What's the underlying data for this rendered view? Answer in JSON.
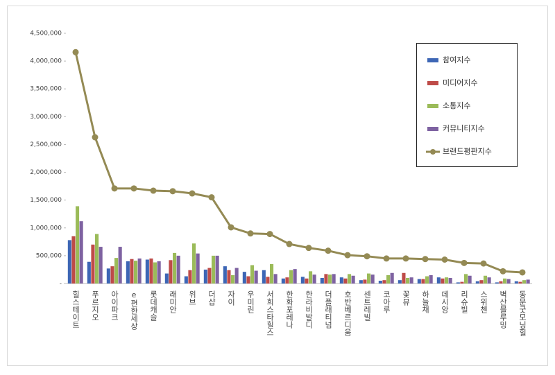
{
  "chart_data": {
    "type": "bar",
    "categories": [
      "힐스테이트",
      "푸르지오",
      "아이파크",
      "e편한세상",
      "롯데캐슬",
      "래미안",
      "위브",
      "더샵",
      "자이",
      "우미린",
      "서희스타힐스",
      "한화포레나",
      "한라비발디",
      "더플래티넘",
      "호반베르디움",
      "센트레빌",
      "코아루",
      "꽃뷰",
      "하늘채",
      "데시앙",
      "리슈빌",
      "스위첸",
      "벽산블루밍",
      "동문굿모닝힐"
    ],
    "series": [
      {
        "name": "참여지수",
        "color": "#3d66b5",
        "values": [
          780000,
          390000,
          270000,
          400000,
          430000,
          180000,
          130000,
          250000,
          310000,
          210000,
          240000,
          90000,
          120000,
          100000,
          110000,
          60000,
          50000,
          60000,
          80000,
          110000,
          20000,
          40000,
          20000,
          40000
        ]
      },
      {
        "name": "미디어지수",
        "color": "#be4b48",
        "values": [
          850000,
          700000,
          310000,
          440000,
          450000,
          420000,
          240000,
          280000,
          240000,
          130000,
          120000,
          110000,
          90000,
          170000,
          90000,
          70000,
          60000,
          190000,
          80000,
          90000,
          30000,
          60000,
          40000,
          30000
        ]
      },
      {
        "name": "소통지수",
        "color": "#9bbb59",
        "values": [
          1390000,
          890000,
          460000,
          410000,
          380000,
          550000,
          720000,
          500000,
          150000,
          330000,
          350000,
          240000,
          220000,
          160000,
          170000,
          180000,
          150000,
          100000,
          130000,
          110000,
          170000,
          140000,
          90000,
          60000
        ]
      },
      {
        "name": "커뮤니티지수",
        "color": "#7e62a1",
        "values": [
          1120000,
          660000,
          660000,
          450000,
          400000,
          500000,
          540000,
          500000,
          280000,
          230000,
          170000,
          260000,
          160000,
          170000,
          140000,
          160000,
          190000,
          110000,
          150000,
          100000,
          140000,
          110000,
          80000,
          70000
        ]
      },
      {
        "name": "브랜드평판지수",
        "color": "#948a54",
        "type": "line",
        "values": [
          4160000,
          2630000,
          1710000,
          1710000,
          1670000,
          1660000,
          1620000,
          1550000,
          1010000,
          900000,
          890000,
          710000,
          640000,
          590000,
          510000,
          490000,
          450000,
          450000,
          440000,
          430000,
          370000,
          360000,
          220000,
          200000
        ]
      }
    ],
    "ylim": [
      0,
      4500000
    ],
    "yticks": [
      {
        "value": 0,
        "label": "-"
      },
      {
        "value": 500000,
        "label": "500,000"
      },
      {
        "value": 1000000,
        "label": "1,000,000"
      },
      {
        "value": 1500000,
        "label": "1,500,000"
      },
      {
        "value": 2000000,
        "label": "2,000,000"
      },
      {
        "value": 2500000,
        "label": "2,500,000"
      },
      {
        "value": 3000000,
        "label": "3,000,000"
      },
      {
        "value": 3500000,
        "label": "3,500,000"
      },
      {
        "value": 4000000,
        "label": "4,000,000"
      },
      {
        "value": 4500000,
        "label": "4,500,000"
      }
    ],
    "legend": "upper-right"
  }
}
